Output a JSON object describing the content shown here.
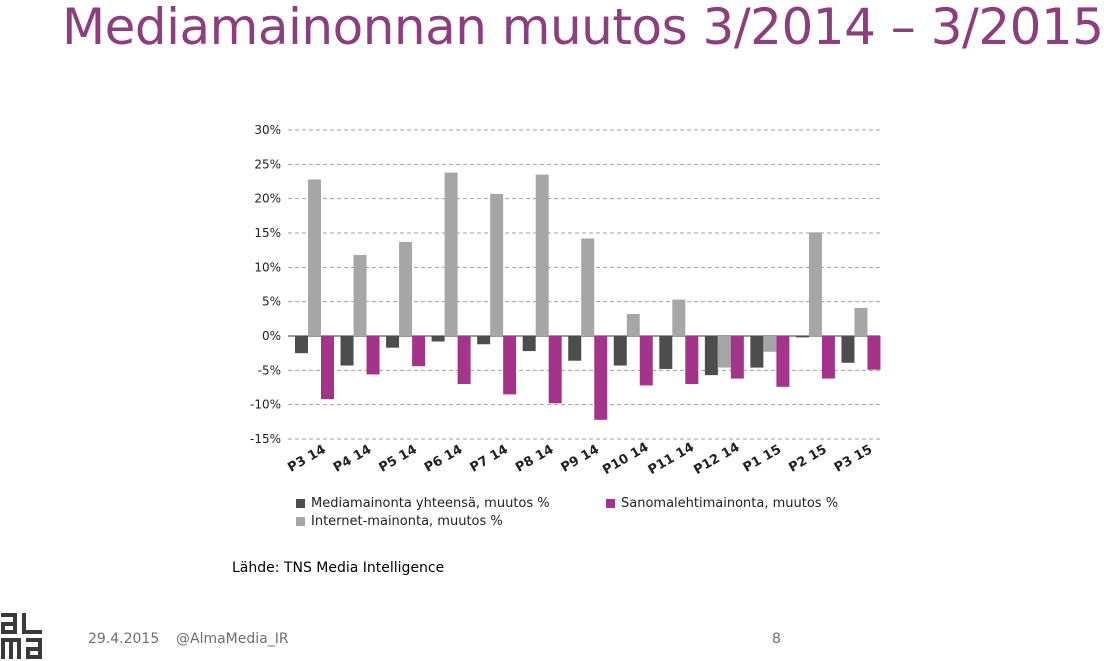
{
  "slide": {
    "title": "Mediamainonnan muutos 3/2014 – 3/2015",
    "source": "Lähde: TNS Media Intelligence",
    "footer_date": "29.4.2015",
    "footer_handle": "@AlmaMedia_IR",
    "page_number": "8",
    "logo_text": "alma"
  },
  "chart_data": {
    "type": "bar",
    "categories": [
      "P3 14",
      "P4 14",
      "P5 14",
      "P6 14",
      "P7 14",
      "P8 14",
      "P9 14",
      "P10 14",
      "P11 14",
      "P12 14",
      "P1 15",
      "P2 15",
      "P3 15"
    ],
    "ylim": [
      -15,
      30
    ],
    "yticks": [
      "30%",
      "25%",
      "20%",
      "15%",
      "10%",
      "5%",
      "0%",
      "-5%",
      "-10%",
      "-15%"
    ],
    "grid": true,
    "legend_position": "bottom",
    "series": [
      {
        "name": "Mediamainonta yhteensä, muutos %",
        "color": "#4d4d4d",
        "values": [
          -2.5,
          -4.3,
          -1.7,
          -0.8,
          -1.2,
          -2.2,
          -3.6,
          -4.3,
          -4.8,
          -5.7,
          -4.6,
          -0.2,
          -3.9
        ]
      },
      {
        "name": "Internet-mainonta, muutos %",
        "color": "#a6a6a6",
        "values": [
          22.8,
          11.8,
          13.7,
          23.8,
          20.7,
          23.5,
          14.2,
          3.2,
          5.3,
          -4.6,
          -2.3,
          15.1,
          4.1
        ]
      },
      {
        "name": "Sanomalehtimainonta, muutos %",
        "color": "#a3338b",
        "values": [
          -9.2,
          -5.6,
          -4.4,
          -7.0,
          -8.5,
          -9.8,
          -12.2,
          -7.2,
          -7.0,
          -6.2,
          -7.4,
          -6.2,
          -4.9
        ]
      }
    ]
  }
}
